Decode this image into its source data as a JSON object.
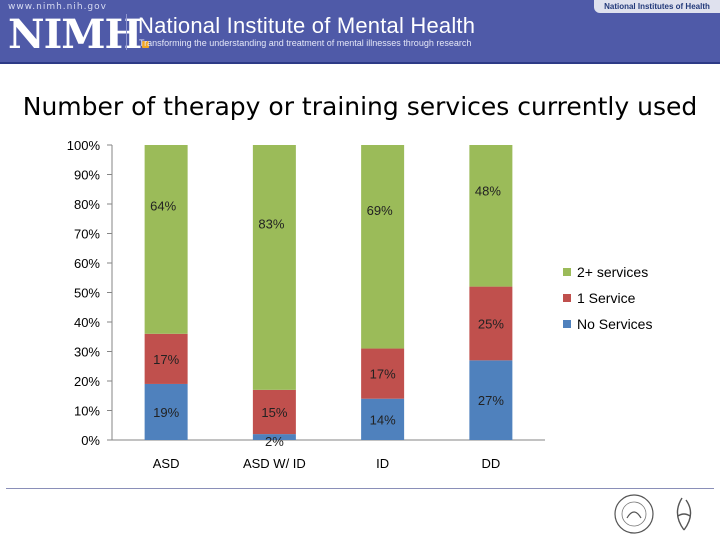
{
  "header": {
    "site_url": "www.nimh.nih.gov",
    "logo_text": "NIMH",
    "institute_name": "National Institute of Mental Health",
    "tagline": "Transforming the understanding and treatment of mental illnesses through research",
    "nih_label": "National Institutes of Health"
  },
  "chart_data": {
    "type": "bar",
    "stacked": true,
    "percent": true,
    "title": "Number of therapy or training services currently used",
    "categories": [
      "ASD",
      "ASD W/ ID",
      "ID",
      "DD"
    ],
    "series": [
      {
        "name": "No Services",
        "color": "#4f81bd",
        "values": [
          19,
          2,
          14,
          27
        ],
        "labels": [
          "19%",
          "2%",
          "14%",
          "27%"
        ]
      },
      {
        "name": "1 Service",
        "color": "#c0504d",
        "values": [
          17,
          15,
          17,
          25
        ],
        "labels": [
          "17%",
          "15%",
          "17%",
          "25%"
        ]
      },
      {
        "name": "2+ services",
        "color": "#9bbb59",
        "values": [
          64,
          83,
          69,
          48
        ],
        "labels": [
          "64%",
          "83%",
          "69%",
          "48%"
        ]
      }
    ],
    "y_ticks": [
      "0%",
      "10%",
      "20%",
      "30%",
      "40%",
      "50%",
      "60%",
      "70%",
      "80%",
      "90%",
      "100%"
    ],
    "ylim": [
      0,
      100
    ],
    "legend_position": "right",
    "grid": false
  }
}
